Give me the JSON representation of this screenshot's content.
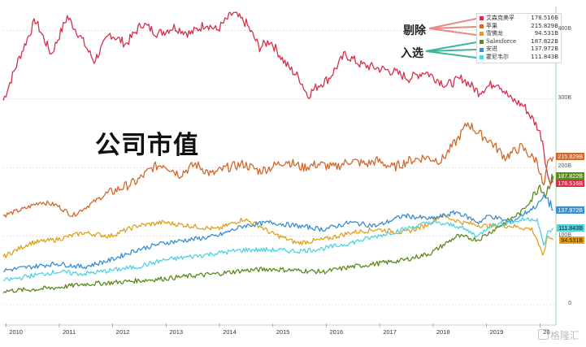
{
  "title": "公司市值",
  "callouts": {
    "removed": "剔除",
    "added": "入选"
  },
  "watermark": "格隆汇",
  "chart_data": {
    "type": "line",
    "y_unit": "B",
    "ylim": [
      0,
      430
    ],
    "yticks": [
      "400B",
      "300B",
      "200B",
      "100B",
      "0"
    ],
    "yticks_values": [
      400,
      300,
      200,
      100,
      0
    ],
    "xticks": [
      "2010",
      "2011",
      "2012",
      "2013",
      "2014",
      "2015",
      "2016",
      "2017",
      "2018",
      "2019",
      "20"
    ],
    "xlim": [
      2010.0,
      2020.35
    ],
    "grid": true,
    "legend_position": "top-right",
    "series": [
      {
        "name": "艾森克美孚",
        "color": "#d6304a",
        "last": "178.516B",
        "points": [
          [
            2010.0,
            298
          ],
          [
            2010.3,
            360
          ],
          [
            2010.6,
            415
          ],
          [
            2010.9,
            365
          ],
          [
            2011.2,
            420
          ],
          [
            2011.45,
            390
          ],
          [
            2011.7,
            355
          ],
          [
            2012.0,
            395
          ],
          [
            2012.3,
            380
          ],
          [
            2012.6,
            410
          ],
          [
            2012.9,
            395
          ],
          [
            2013.2,
            405
          ],
          [
            2013.5,
            395
          ],
          [
            2013.8,
            410
          ],
          [
            2014.0,
            400
          ],
          [
            2014.3,
            425
          ],
          [
            2014.55,
            410
          ],
          [
            2014.8,
            375
          ],
          [
            2015.0,
            385
          ],
          [
            2015.3,
            350
          ],
          [
            2015.55,
            330
          ],
          [
            2015.7,
            305
          ],
          [
            2015.9,
            320
          ],
          [
            2016.1,
            330
          ],
          [
            2016.4,
            365
          ],
          [
            2016.7,
            350
          ],
          [
            2017.0,
            345
          ],
          [
            2017.3,
            340
          ],
          [
            2017.6,
            330
          ],
          [
            2017.9,
            340
          ],
          [
            2018.1,
            330
          ],
          [
            2018.3,
            320
          ],
          [
            2018.6,
            330
          ],
          [
            2018.9,
            310
          ],
          [
            2019.0,
            315
          ],
          [
            2019.25,
            325
          ],
          [
            2019.5,
            300
          ],
          [
            2019.75,
            290
          ],
          [
            2020.0,
            260
          ],
          [
            2020.1,
            240
          ],
          [
            2020.2,
            185
          ],
          [
            2020.3,
            178.5
          ]
        ]
      },
      {
        "name": "苹果",
        "color": "#d2692a",
        "last": "215.829B",
        "points": [
          [
            2010.0,
            130
          ],
          [
            2010.4,
            140
          ],
          [
            2010.7,
            150
          ],
          [
            2011.0,
            145
          ],
          [
            2011.3,
            130
          ],
          [
            2011.6,
            145
          ],
          [
            2011.9,
            160
          ],
          [
            2012.2,
            170
          ],
          [
            2012.5,
            180
          ],
          [
            2012.8,
            200
          ],
          [
            2013.0,
            205
          ],
          [
            2013.3,
            190
          ],
          [
            2013.6,
            205
          ],
          [
            2013.9,
            190
          ],
          [
            2014.2,
            200
          ],
          [
            2014.5,
            205
          ],
          [
            2014.8,
            195
          ],
          [
            2015.0,
            200
          ],
          [
            2015.3,
            210
          ],
          [
            2015.6,
            200
          ],
          [
            2015.9,
            205
          ],
          [
            2016.2,
            200
          ],
          [
            2016.5,
            210
          ],
          [
            2016.8,
            205
          ],
          [
            2017.0,
            210
          ],
          [
            2017.3,
            200
          ],
          [
            2017.6,
            210
          ],
          [
            2017.9,
            215
          ],
          [
            2018.2,
            210
          ],
          [
            2018.5,
            240
          ],
          [
            2018.7,
            265
          ],
          [
            2018.9,
            250
          ],
          [
            2019.1,
            240
          ],
          [
            2019.4,
            215
          ],
          [
            2019.7,
            230
          ],
          [
            2019.9,
            215
          ],
          [
            2020.0,
            210
          ],
          [
            2020.12,
            170
          ],
          [
            2020.2,
            205
          ],
          [
            2020.3,
            215.8
          ]
        ]
      },
      {
        "name": "雪佛龙",
        "color": "#e0a21c",
        "last": "94.531B",
        "points": [
          [
            2010.0,
            70
          ],
          [
            2010.5,
            90
          ],
          [
            2011.0,
            95
          ],
          [
            2011.5,
            105
          ],
          [
            2012.0,
            100
          ],
          [
            2012.5,
            115
          ],
          [
            2013.0,
            120
          ],
          [
            2013.5,
            115
          ],
          [
            2014.0,
            110
          ],
          [
            2014.5,
            125
          ],
          [
            2014.8,
            115
          ],
          [
            2015.0,
            105
          ],
          [
            2015.5,
            90
          ],
          [
            2016.0,
            95
          ],
          [
            2016.5,
            105
          ],
          [
            2017.0,
            110
          ],
          [
            2017.5,
            105
          ],
          [
            2017.9,
            115
          ],
          [
            2018.2,
            130
          ],
          [
            2018.6,
            120
          ],
          [
            2019.0,
            115
          ],
          [
            2019.5,
            115
          ],
          [
            2019.9,
            110
          ],
          [
            2020.0,
            95
          ],
          [
            2020.1,
            70
          ],
          [
            2020.2,
            100
          ],
          [
            2020.3,
            94.5
          ]
        ]
      },
      {
        "name": "Salesforce",
        "color": "#5d8a1d",
        "last": "187.822B",
        "points": [
          [
            2010.0,
            20
          ],
          [
            2010.5,
            22
          ],
          [
            2011.0,
            25
          ],
          [
            2011.5,
            30
          ],
          [
            2012.0,
            32
          ],
          [
            2012.5,
            35
          ],
          [
            2013.0,
            38
          ],
          [
            2013.5,
            42
          ],
          [
            2014.0,
            45
          ],
          [
            2014.5,
            50
          ],
          [
            2015.0,
            52
          ],
          [
            2015.5,
            50
          ],
          [
            2016.0,
            48
          ],
          [
            2016.5,
            55
          ],
          [
            2017.0,
            60
          ],
          [
            2017.5,
            65
          ],
          [
            2018.0,
            75
          ],
          [
            2018.5,
            100
          ],
          [
            2018.9,
            95
          ],
          [
            2019.1,
            105
          ],
          [
            2019.4,
            120
          ],
          [
            2019.7,
            135
          ],
          [
            2019.9,
            155
          ],
          [
            2020.05,
            175
          ],
          [
            2020.15,
            160
          ],
          [
            2020.25,
            180
          ],
          [
            2020.3,
            187.8
          ]
        ]
      },
      {
        "name": "安进",
        "color": "#3a8fcf",
        "last": "137.972B",
        "points": [
          [
            2010.0,
            50
          ],
          [
            2010.5,
            55
          ],
          [
            2011.0,
            60
          ],
          [
            2011.5,
            55
          ],
          [
            2012.0,
            65
          ],
          [
            2012.5,
            80
          ],
          [
            2013.0,
            90
          ],
          [
            2013.5,
            95
          ],
          [
            2014.0,
            100
          ],
          [
            2014.5,
            115
          ],
          [
            2015.0,
            120
          ],
          [
            2015.5,
            115
          ],
          [
            2016.0,
            110
          ],
          [
            2016.5,
            120
          ],
          [
            2017.0,
            115
          ],
          [
            2017.5,
            130
          ],
          [
            2018.0,
            125
          ],
          [
            2018.5,
            135
          ],
          [
            2018.9,
            120
          ],
          [
            2019.1,
            130
          ],
          [
            2019.5,
            120
          ],
          [
            2019.8,
            135
          ],
          [
            2020.0,
            145
          ],
          [
            2020.15,
            160
          ],
          [
            2020.3,
            138
          ]
        ]
      },
      {
        "name": "霍尼韦尔",
        "color": "#4fd3e0",
        "last": "111.843B",
        "points": [
          [
            2010.0,
            35
          ],
          [
            2010.5,
            42
          ],
          [
            2011.0,
            48
          ],
          [
            2011.5,
            45
          ],
          [
            2012.0,
            50
          ],
          [
            2012.5,
            55
          ],
          [
            2013.0,
            65
          ],
          [
            2013.5,
            70
          ],
          [
            2014.0,
            75
          ],
          [
            2014.5,
            80
          ],
          [
            2015.0,
            80
          ],
          [
            2015.5,
            78
          ],
          [
            2016.0,
            82
          ],
          [
            2016.5,
            90
          ],
          [
            2017.0,
            100
          ],
          [
            2017.5,
            110
          ],
          [
            2018.0,
            120
          ],
          [
            2018.5,
            115
          ],
          [
            2018.9,
            100
          ],
          [
            2019.1,
            115
          ],
          [
            2019.5,
            120
          ],
          [
            2019.8,
            125
          ],
          [
            2020.0,
            125
          ],
          [
            2020.12,
            85
          ],
          [
            2020.2,
            105
          ],
          [
            2020.3,
            111.8
          ]
        ]
      }
    ]
  }
}
